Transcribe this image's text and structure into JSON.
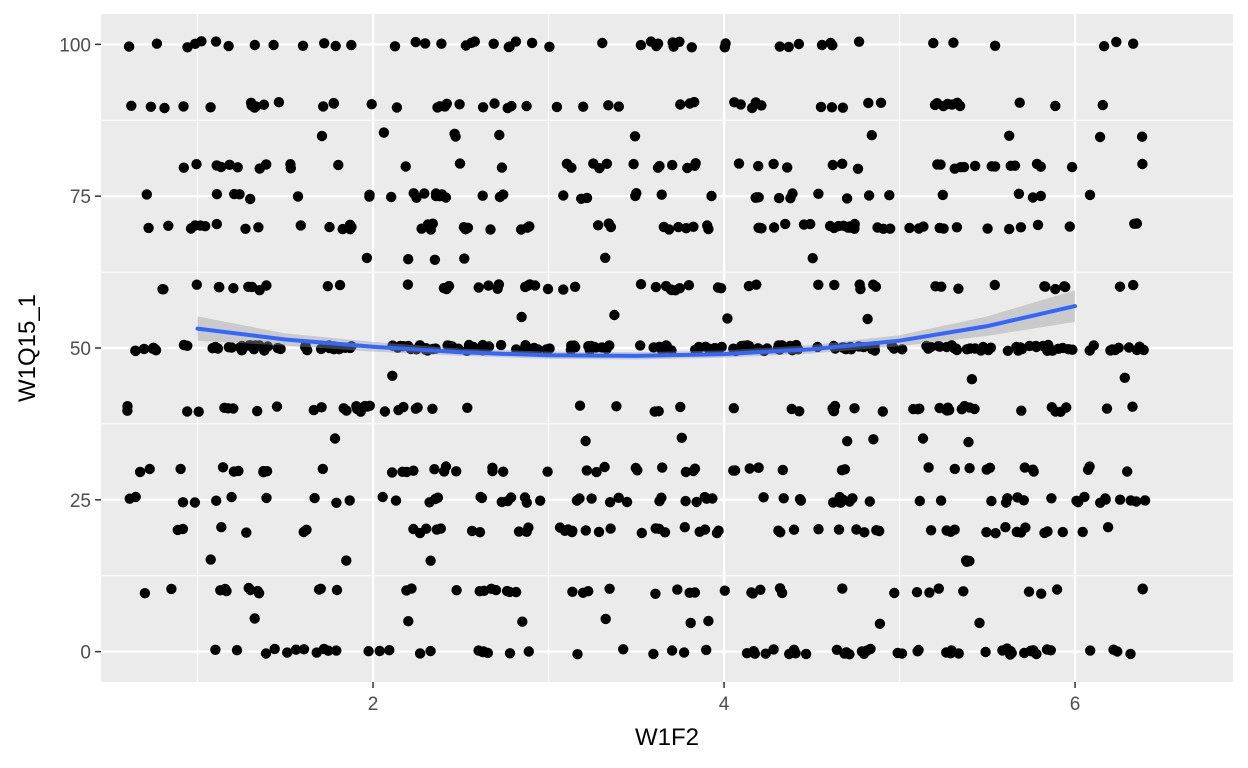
{
  "chart_data": {
    "type": "scatter",
    "title": "",
    "xlabel": "W1F2",
    "ylabel": "W1Q15_1",
    "xlim": [
      0.45,
      6.9
    ],
    "ylim": [
      -5,
      105
    ],
    "x_ticks": [
      2,
      4,
      6
    ],
    "y_ticks": [
      0,
      25,
      50,
      75,
      100
    ],
    "x_tick_labels": [
      "2",
      "4",
      "6"
    ],
    "y_tick_labels": [
      "0",
      "25",
      "50",
      "75",
      "100"
    ],
    "grid": true,
    "legend": "none",
    "jitter_width": 0.4,
    "x_levels": [
      1,
      1.5,
      2,
      2.5,
      3,
      3.5,
      4,
      4.5,
      5,
      5.5,
      6
    ],
    "y_levels_common": [
      0,
      10,
      20,
      25,
      30,
      40,
      50,
      60,
      70,
      75,
      80,
      90,
      100
    ],
    "y_levels_rare": [
      5,
      15,
      35,
      45,
      55,
      65,
      85
    ],
    "smooth": {
      "method": "loess",
      "x": [
        1.0,
        1.5,
        2.0,
        2.5,
        3.0,
        3.5,
        4.0,
        4.5,
        5.0,
        5.5,
        6.0
      ],
      "y": [
        53.2,
        51.4,
        50.2,
        49.3,
        48.8,
        48.7,
        49.0,
        49.8,
        51.2,
        53.6,
        56.9
      ],
      "se_lower": [
        51.2,
        50.4,
        49.4,
        48.7,
        48.2,
        48.1,
        48.4,
        49.1,
        50.3,
        52.0,
        54.3
      ],
      "se_upper": [
        55.2,
        52.4,
        51.0,
        49.9,
        49.4,
        49.3,
        49.6,
        50.5,
        52.1,
        55.2,
        59.5
      ]
    },
    "colors": {
      "panel": "#ebebeb",
      "grid_major": "#ffffff",
      "point": "#000000",
      "smooth_line": "#3366ff",
      "ribbon": "#999999"
    }
  }
}
